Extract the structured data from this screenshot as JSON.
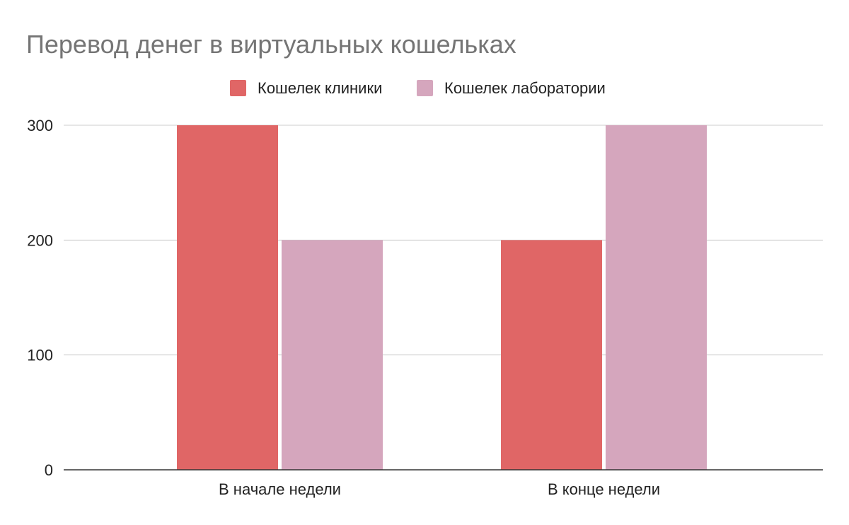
{
  "chart_data": {
    "type": "bar",
    "title": "Перевод денег в виртуальных кошельках",
    "categories": [
      "В начале недели",
      "В конце недели"
    ],
    "series": [
      {
        "name": "Кошелек клиники",
        "values": [
          300,
          200
        ],
        "color": "#e06666"
      },
      {
        "name": "Кошелек лаборатории",
        "values": [
          200,
          300
        ],
        "color": "#d5a6bd"
      }
    ],
    "xlabel": "",
    "ylabel": "",
    "ylim": [
      0,
      300
    ],
    "yticks": [
      "0",
      "100",
      "200",
      "300"
    ],
    "grid": true,
    "legend_position": "top-center"
  }
}
